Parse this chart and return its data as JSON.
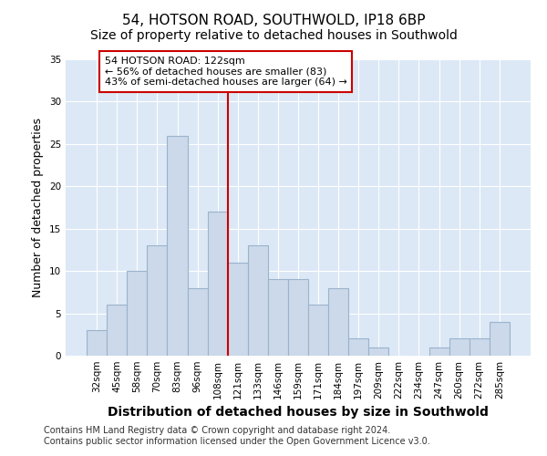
{
  "title": "54, HOTSON ROAD, SOUTHWOLD, IP18 6BP",
  "subtitle": "Size of property relative to detached houses in Southwold",
  "xlabel": "Distribution of detached houses by size in Southwold",
  "ylabel": "Number of detached properties",
  "bar_labels": [
    "32sqm",
    "45sqm",
    "58sqm",
    "70sqm",
    "83sqm",
    "96sqm",
    "108sqm",
    "121sqm",
    "133sqm",
    "146sqm",
    "159sqm",
    "171sqm",
    "184sqm",
    "197sqm",
    "209sqm",
    "222sqm",
    "234sqm",
    "247sqm",
    "260sqm",
    "272sqm",
    "285sqm"
  ],
  "bar_values": [
    3,
    6,
    10,
    13,
    26,
    8,
    17,
    11,
    13,
    9,
    9,
    6,
    8,
    2,
    1,
    0,
    0,
    1,
    2,
    2,
    4
  ],
  "bar_color": "#ccd9ea",
  "bar_edge_color": "#9ab3cc",
  "vline_color": "#cc0000",
  "ylim": [
    0,
    35
  ],
  "yticks": [
    0,
    5,
    10,
    15,
    20,
    25,
    30,
    35
  ],
  "annotation_title": "54 HOTSON ROAD: 122sqm",
  "annotation_line1": "← 56% of detached houses are smaller (83)",
  "annotation_line2": "43% of semi-detached houses are larger (64) →",
  "annotation_box_color": "#ffffff",
  "annotation_box_edge": "#cc0000",
  "footer_line1": "Contains HM Land Registry data © Crown copyright and database right 2024.",
  "footer_line2": "Contains public sector information licensed under the Open Government Licence v3.0.",
  "fig_bg_color": "#ffffff",
  "plot_bg_color": "#dce8f5",
  "grid_color": "#ffffff",
  "title_fontsize": 11,
  "subtitle_fontsize": 10,
  "xlabel_fontsize": 10,
  "ylabel_fontsize": 9,
  "tick_fontsize": 7.5,
  "footer_fontsize": 7,
  "annotation_fontsize": 8
}
